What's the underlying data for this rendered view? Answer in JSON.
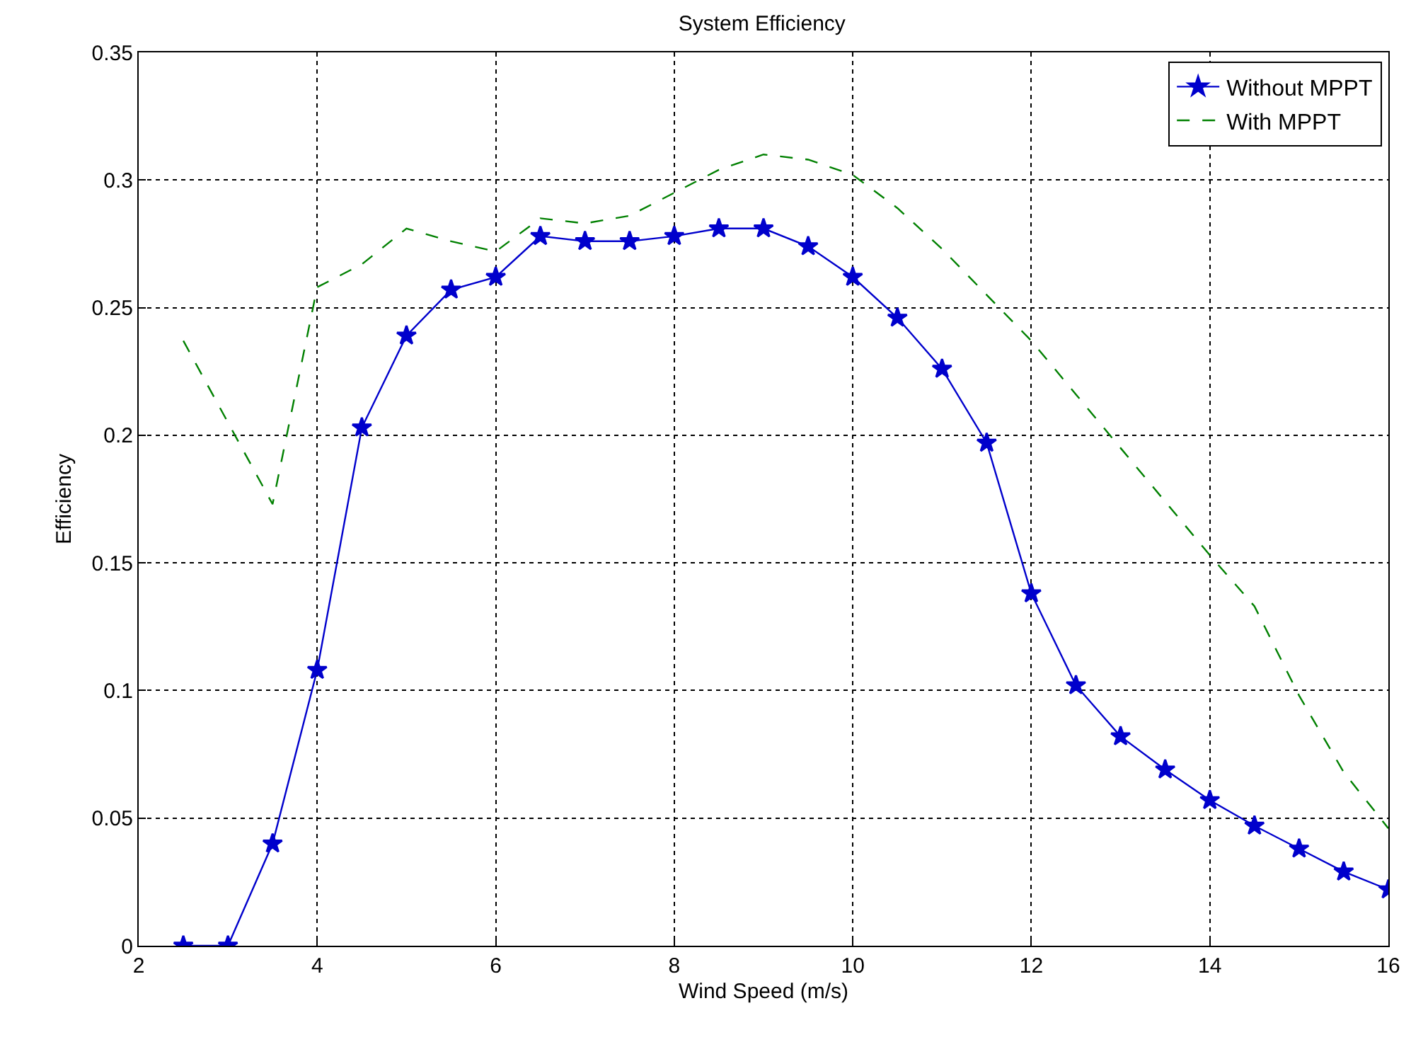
{
  "chart_data": {
    "type": "line",
    "title": "System Efficiency",
    "xlabel": "Wind Speed (m/s)",
    "ylabel": "Efficiency",
    "x": [
      2.5,
      3,
      3.5,
      4,
      4.5,
      5,
      5.5,
      6,
      6.5,
      7,
      7.5,
      8,
      8.5,
      9,
      9.5,
      10,
      10.5,
      11,
      11.5,
      12,
      12.5,
      13,
      13.5,
      14,
      14.5,
      15,
      15.5,
      16
    ],
    "series": [
      {
        "name": "Without MPPT",
        "color": "#0000cc",
        "marker": "star",
        "line_style": "solid",
        "values": [
          0,
          0,
          0.04,
          0.108,
          0.203,
          0.239,
          0.257,
          0.262,
          0.278,
          0.276,
          0.276,
          0.278,
          0.281,
          0.281,
          0.274,
          0.262,
          0.246,
          0.226,
          0.197,
          0.138,
          0.102,
          0.082,
          0.069,
          0.057,
          0.047,
          0.038,
          0.029,
          0.022
        ]
      },
      {
        "name": "With MPPT",
        "color": "#008000",
        "marker": "none",
        "line_style": "dashed",
        "values": [
          0.237,
          0.205,
          0.173,
          0.258,
          0.267,
          0.281,
          0.276,
          0.272,
          0.285,
          0.283,
          0.286,
          0.295,
          0.304,
          0.31,
          0.308,
          0.302,
          0.289,
          0.273,
          0.255,
          0.237,
          0.216,
          0.195,
          0.174,
          0.153,
          0.133,
          0.098,
          0.068,
          0.046
        ]
      }
    ],
    "xlim": [
      2,
      16
    ],
    "xticks": [
      2,
      4,
      6,
      8,
      10,
      12,
      14,
      16
    ],
    "ylim": [
      0,
      0.35
    ],
    "yticks": [
      0,
      0.05,
      0.1,
      0.15,
      0.2,
      0.25,
      0.3,
      0.35
    ],
    "grid": true,
    "legend": "top right"
  }
}
